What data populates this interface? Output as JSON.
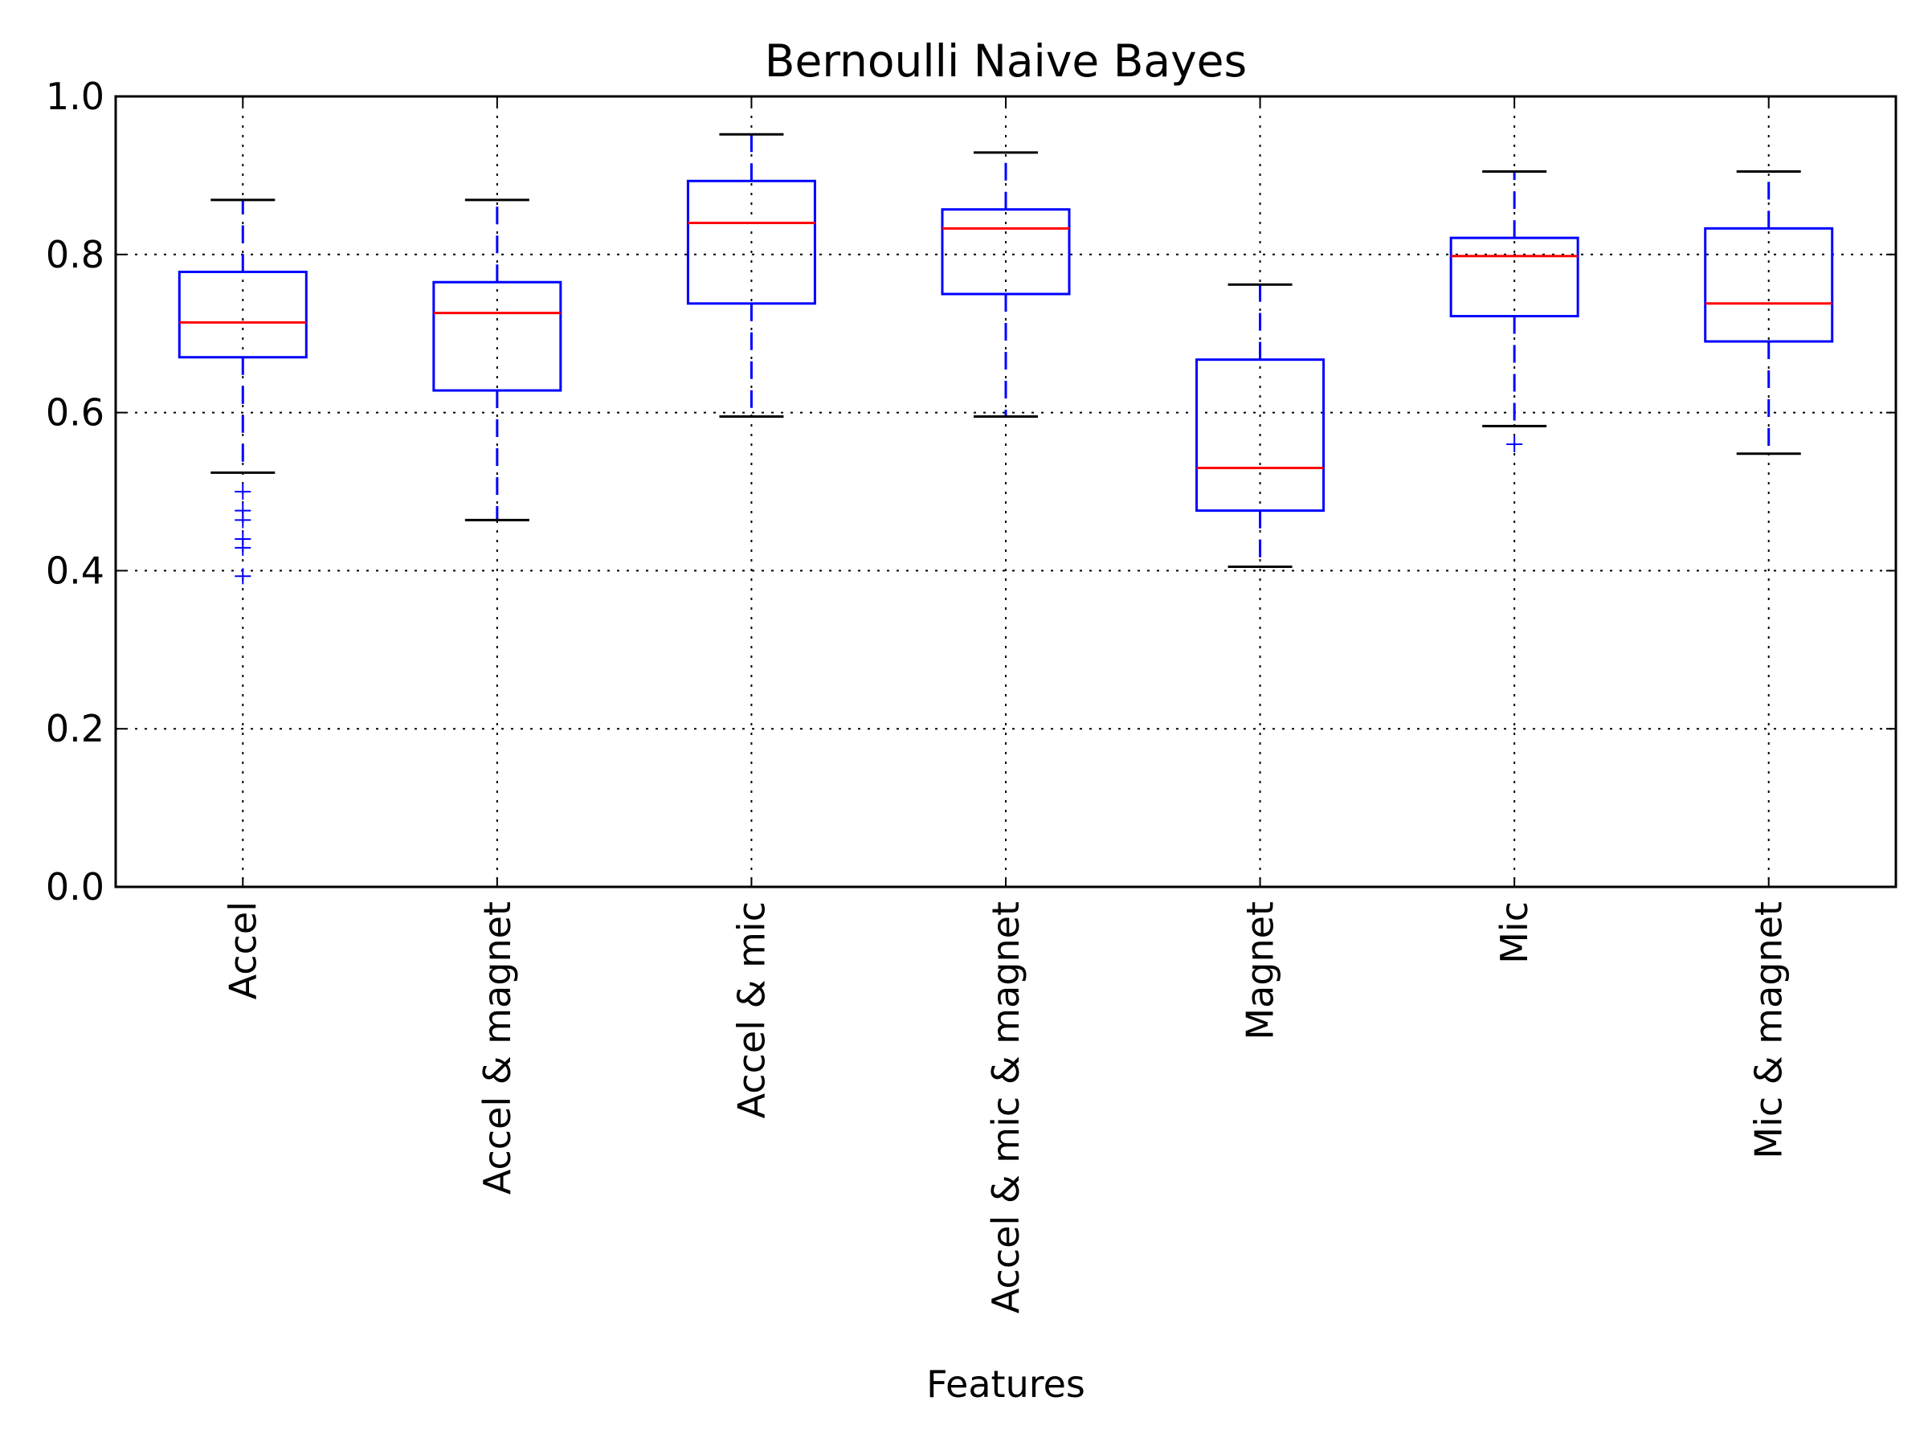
{
  "chart_data": {
    "type": "box",
    "title": "Bernoulli Naive Bayes",
    "xlabel": "Features",
    "ylabel": "",
    "ylim": [
      0.0,
      1.0
    ],
    "yticks": [
      "0.0",
      "0.2",
      "0.4",
      "0.6",
      "0.8",
      "1.0"
    ],
    "grid": true,
    "categories": [
      "Accel",
      "Accel & magnet",
      "Accel & mic",
      "Accel & mic & magnet",
      "Magnet",
      "Mic",
      "Mic & magnet"
    ],
    "boxes": [
      {
        "whisker_low": 0.524,
        "q1": 0.67,
        "median": 0.714,
        "q3": 0.778,
        "whisker_high": 0.869,
        "outliers": [
          0.5,
          0.476,
          0.464,
          0.44,
          0.429,
          0.393
        ]
      },
      {
        "whisker_low": 0.464,
        "q1": 0.628,
        "median": 0.726,
        "q3": 0.765,
        "whisker_high": 0.869,
        "outliers": []
      },
      {
        "whisker_low": 0.595,
        "q1": 0.738,
        "median": 0.84,
        "q3": 0.893,
        "whisker_high": 0.952,
        "outliers": []
      },
      {
        "whisker_low": 0.595,
        "q1": 0.75,
        "median": 0.833,
        "q3": 0.857,
        "whisker_high": 0.929,
        "outliers": []
      },
      {
        "whisker_low": 0.405,
        "q1": 0.476,
        "median": 0.53,
        "q3": 0.667,
        "whisker_high": 0.762,
        "outliers": []
      },
      {
        "whisker_low": 0.583,
        "q1": 0.722,
        "median": 0.798,
        "q3": 0.821,
        "whisker_high": 0.905,
        "outliers": [
          0.56
        ]
      },
      {
        "whisker_low": 0.548,
        "q1": 0.69,
        "median": 0.738,
        "q3": 0.833,
        "whisker_high": 0.905,
        "outliers": []
      }
    ],
    "colors": {
      "box": "#0000ff",
      "median": "#ff0000",
      "cap": "#000000",
      "grid": "#000000",
      "outlier": "#0000ff"
    }
  }
}
